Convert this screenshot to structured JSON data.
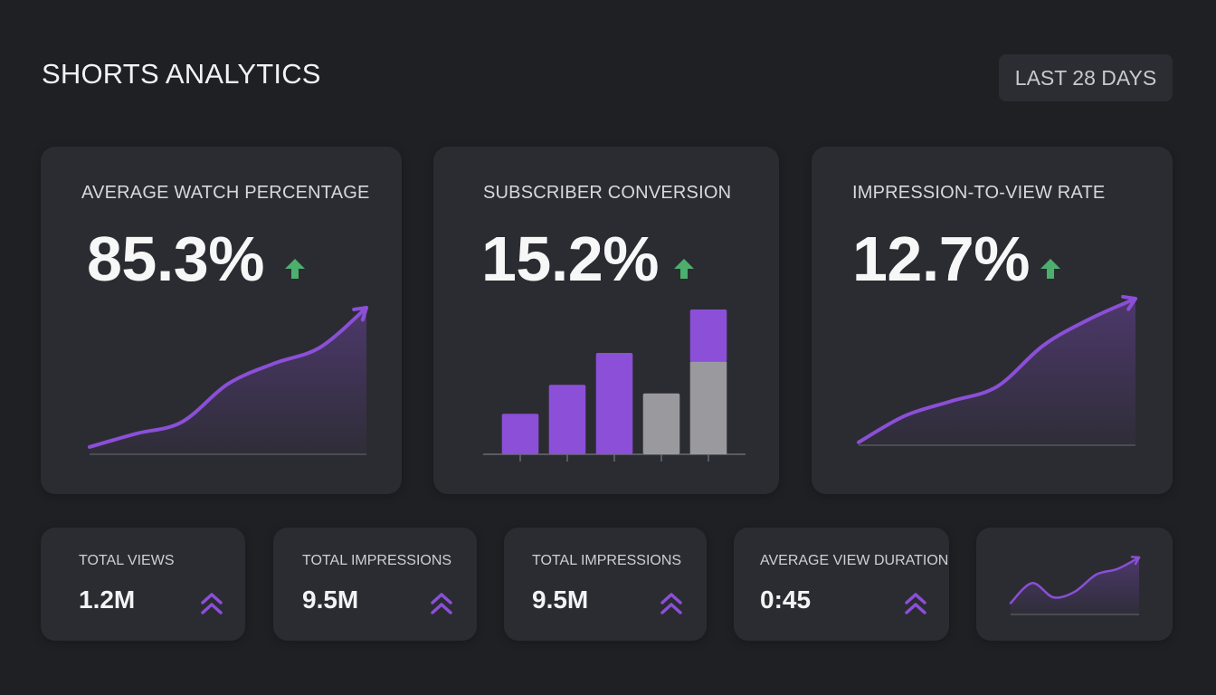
{
  "header": {
    "title": "SHORTS ANALYTICS",
    "range_label": "LAST 28 DAYS"
  },
  "colors": {
    "background": "#1f2024",
    "card": "#2b2c31",
    "accent_purple": "#8b4fd8",
    "bar_gray": "#9a9a9e",
    "trend_green": "#4caf6e"
  },
  "metrics": [
    {
      "title": "AVERAGE WATCH PERCENTAGE",
      "value": "85.3%",
      "trend_icon": "arrow-up-icon",
      "chart_type": "line"
    },
    {
      "title": "SUBSCRIBER CONVERSION",
      "value": "15.2%",
      "trend_icon": "arrow-up-icon",
      "chart_type": "bar"
    },
    {
      "title": "IMPRESSION-TO-VIEW RATE",
      "value": "12.7%",
      "trend_icon": "arrow-up-icon",
      "chart_type": "line"
    }
  ],
  "stats": [
    {
      "label": "TOTAL VIEWS",
      "value": "1.2M",
      "icon": "double-chevron-up-icon"
    },
    {
      "label": "TOTAL IMPRESSIONS",
      "value": "9.5M",
      "icon": "double-chevron-up-icon"
    },
    {
      "label": "TOTAL IMPRESSIONS",
      "value": "9.5M",
      "icon": "double-chevron-up-icon"
    },
    {
      "label": "AVERAGE VIEW DURATION",
      "value": "0:45",
      "icon": "double-chevron-up-icon"
    }
  ],
  "chart_data": [
    {
      "type": "line",
      "x": [
        0,
        1,
        2,
        3,
        4,
        5,
        6
      ],
      "values": [
        5,
        14,
        22,
        48,
        62,
        73,
        100
      ],
      "ylim": [
        0,
        100
      ],
      "grid": false
    },
    {
      "type": "bar",
      "categories": [
        "1",
        "2",
        "3",
        "4",
        "5"
      ],
      "series": [
        {
          "values": [
            28,
            48,
            70,
            42,
            100
          ],
          "colors": [
            "#8b4fd8",
            "#8b4fd8",
            "#8b4fd8",
            "#9a9a9e",
            "#9a9a9e"
          ]
        }
      ],
      "stacked_top": {
        "index": 4,
        "gray_value": 64,
        "purple_value": 36
      },
      "ylim": [
        0,
        100
      ],
      "grid": false
    },
    {
      "type": "line",
      "x": [
        0,
        1,
        2,
        3,
        4,
        5,
        6
      ],
      "values": [
        2,
        20,
        30,
        40,
        68,
        86,
        100
      ],
      "ylim": [
        0,
        100
      ],
      "grid": false
    },
    {
      "type": "line",
      "x": [
        0,
        1,
        2,
        3,
        4,
        5,
        6
      ],
      "values": [
        20,
        55,
        30,
        40,
        70,
        80,
        100
      ],
      "ylim": [
        0,
        100
      ],
      "grid": false
    }
  ]
}
